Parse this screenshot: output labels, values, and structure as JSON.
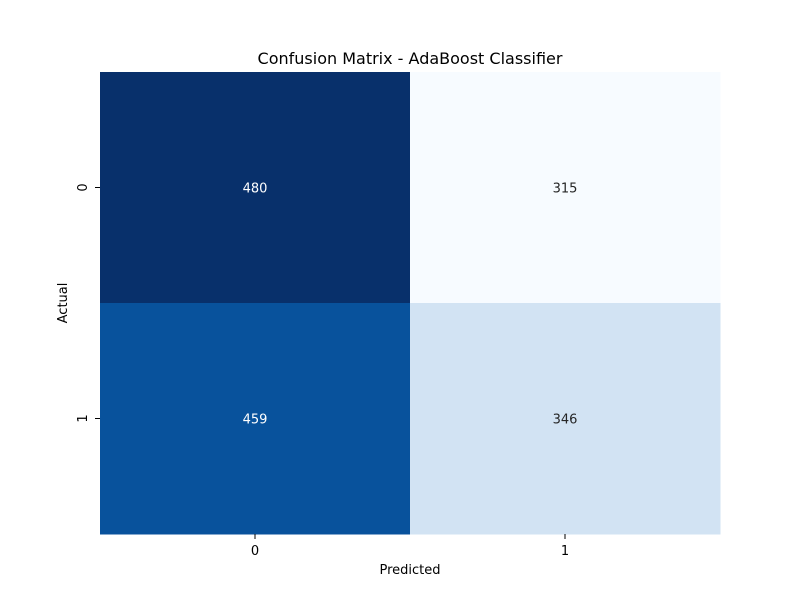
{
  "chart_data": {
    "type": "heatmap",
    "title": "Confusion Matrix - AdaBoost Classifier",
    "xlabel": "Predicted",
    "ylabel": "Actual",
    "x_categories": [
      "0",
      "1"
    ],
    "y_categories": [
      "0",
      "1"
    ],
    "values": [
      [
        480,
        315
      ],
      [
        459,
        346
      ]
    ],
    "colormap": "Blues",
    "colors": {
      "min": "#f7fbff",
      "max": "#08306b",
      "text_dark_cell": "#ffffff",
      "text_light_cell": "#262626"
    },
    "colorbar": false,
    "annotated": true
  }
}
